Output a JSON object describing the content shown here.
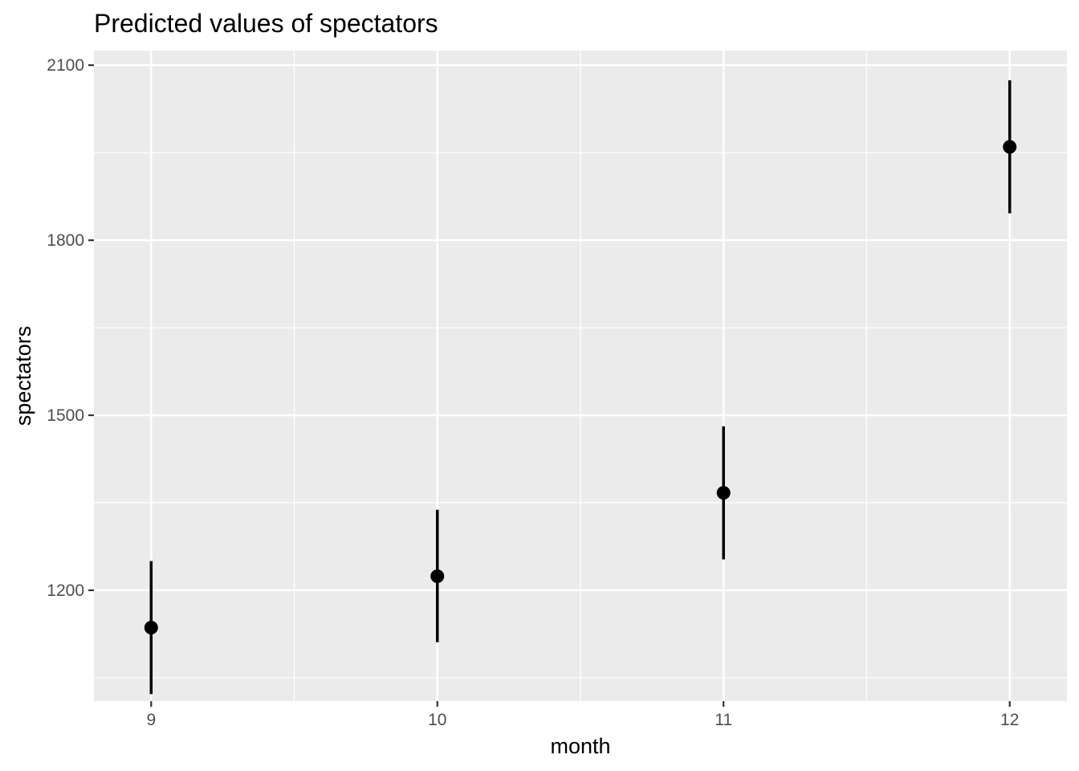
{
  "chart_data": {
    "type": "scatter",
    "title": "Predicted values of spectators",
    "xlabel": "month",
    "ylabel": "spectators",
    "categories": [
      "9",
      "10",
      "11",
      "12"
    ],
    "x": [
      9,
      10,
      11,
      12
    ],
    "series": [
      {
        "values": [
          1136,
          1224,
          1367,
          1960
        ],
        "lower": [
          1022,
          1111,
          1253,
          1846
        ],
        "upper": [
          1250,
          1338,
          1481,
          2074
        ]
      }
    ],
    "xlim": [
      8.8,
      12.2
    ],
    "ylim": [
      1010,
      2125
    ],
    "yticks": [
      1200,
      1500,
      1800,
      2100
    ],
    "ytick_labels": [
      "1200",
      "1500",
      "1800",
      "2100"
    ],
    "xticks": [
      9,
      10,
      11,
      12
    ],
    "xtick_labels": [
      "9",
      "10",
      "11",
      "12"
    ],
    "grid": true,
    "legend": "none",
    "colors": {
      "panel_background": "#ebebeb",
      "grid": "#ffffff",
      "points": "#000000",
      "tick_labels": "#4d4d4d",
      "ticks": "#333333"
    }
  }
}
